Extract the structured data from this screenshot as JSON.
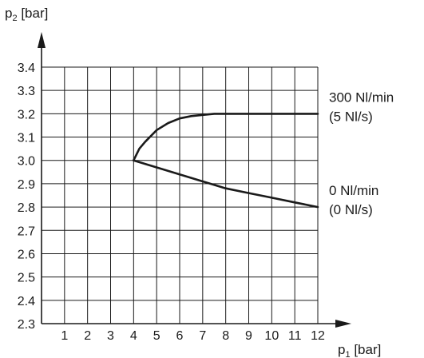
{
  "chart_data": {
    "type": "line",
    "xlabel": "p",
    "xlabel_sub": "1",
    "xlabel_unit": " [bar]",
    "ylabel": "p",
    "ylabel_sub": "2",
    "ylabel_unit": " [bar]",
    "xlim": [
      0,
      12
    ],
    "ylim": [
      2.3,
      3.4
    ],
    "x_ticks": [
      1,
      2,
      3,
      4,
      5,
      6,
      7,
      8,
      9,
      10,
      11,
      12
    ],
    "y_ticks": [
      2.3,
      2.4,
      2.5,
      2.6,
      2.7,
      2.8,
      2.9,
      3.0,
      3.1,
      3.2,
      3.3,
      3.4
    ],
    "x_tick_labels": [
      "1",
      "2",
      "3",
      "4",
      "5",
      "6",
      "7",
      "8",
      "9",
      "10",
      "11",
      "12"
    ],
    "y_tick_labels": [
      "2.3",
      "2.4",
      "2.5",
      "2.6",
      "2.7",
      "2.8",
      "2.9",
      "3.0",
      "3.1",
      "3.2",
      "3.3",
      "3.4"
    ],
    "grid": true,
    "series": [
      {
        "name": "300 Nl/min (5 Nl/s)",
        "label_lines": [
          "300 Nl/min",
          "(5 Nl/s)"
        ],
        "x": [
          4,
          4.25,
          4.5,
          5,
          5.5,
          6,
          6.5,
          7,
          7.5,
          8,
          9,
          10,
          11,
          12
        ],
        "y": [
          3.0,
          3.05,
          3.08,
          3.13,
          3.16,
          3.18,
          3.19,
          3.195,
          3.2,
          3.2,
          3.2,
          3.2,
          3.2,
          3.2
        ]
      },
      {
        "name": "0 Nl/min (0 Nl/s)",
        "label_lines": [
          "0 Nl/min",
          "(0 Nl/s)"
        ],
        "x": [
          4,
          5,
          6,
          7,
          8,
          9,
          10,
          11,
          12
        ],
        "y": [
          3.0,
          2.97,
          2.94,
          2.91,
          2.88,
          2.86,
          2.84,
          2.82,
          2.8
        ]
      }
    ]
  }
}
